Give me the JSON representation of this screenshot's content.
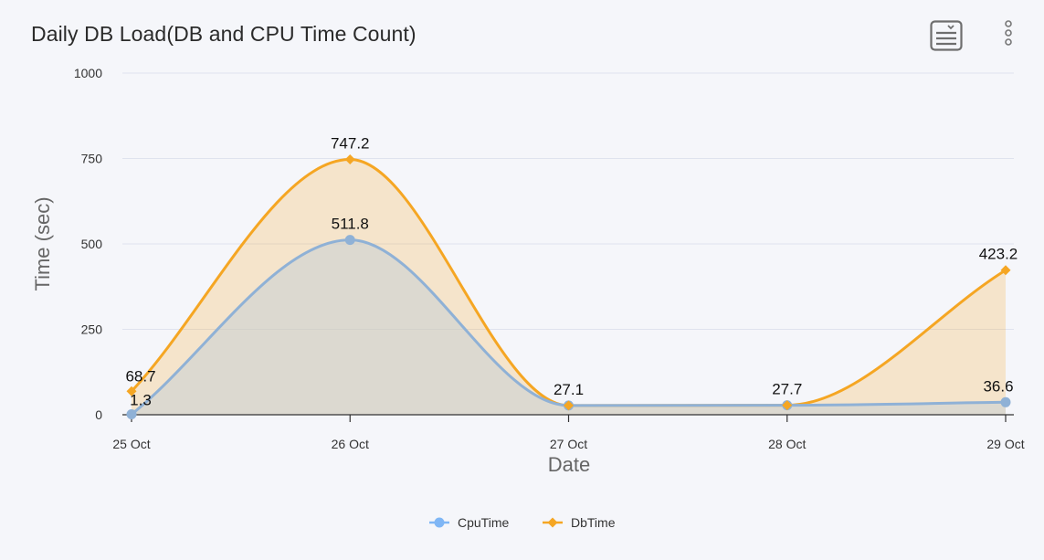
{
  "header": {
    "title": "Daily DB Load(DB and CPU Time Count)",
    "menu_icon": "hamburger-menu-icon",
    "more_icon": "vertical-dots-icon"
  },
  "chart_data": {
    "type": "area",
    "title": "Daily DB Load(DB and CPU Time Count)",
    "xlabel": "Date",
    "ylabel": "Time (sec)",
    "categories": [
      "25 Oct",
      "26 Oct",
      "27 Oct",
      "28 Oct",
      "29 Oct"
    ],
    "ylim": [
      0,
      1000
    ],
    "yticks": [
      0,
      250,
      500,
      750,
      1000
    ],
    "grid": true,
    "legend_position": "bottom-center",
    "series": [
      {
        "name": "CpuTime",
        "values": [
          1.3,
          511.8,
          27.1,
          27.7,
          36.6
        ],
        "color": "#8fb1d6",
        "marker": "circle",
        "label_color": "#7fb6f5"
      },
      {
        "name": "DbTime",
        "values": [
          68.7,
          747.2,
          27.1,
          27.7,
          423.2
        ],
        "color": "#f5a623",
        "marker": "diamond",
        "label_color": "#f5a623"
      }
    ],
    "data_labels": [
      "68.7",
      "1.3",
      "747.2",
      "511.8",
      "27.1",
      "27.7",
      "423.2",
      "36.6"
    ]
  }
}
